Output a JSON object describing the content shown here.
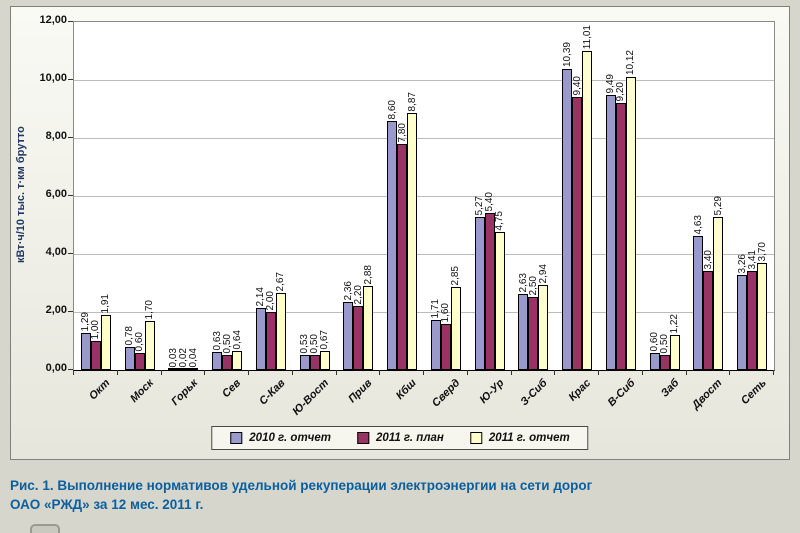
{
  "chart_data": {
    "type": "bar",
    "title": "",
    "xlabel": "",
    "ylabel": "кВт·ч/10 тыс. т·км брутто",
    "ylim": [
      0,
      12
    ],
    "ytick_step": 2,
    "yticks": [
      "0,00",
      "2,00",
      "4,00",
      "6,00",
      "8,00",
      "10,00",
      "12,00"
    ],
    "grid": true,
    "legend_position": "bottom",
    "categories": [
      "Окт",
      "Моск",
      "Горьк",
      "Сев",
      "С-Кав",
      "Ю-Вост",
      "Прив",
      "Кбш",
      "Сверд",
      "Ю-Ур",
      "З-Сиб",
      "Крас",
      "В-Сиб",
      "Заб",
      "Двост",
      "Сеть"
    ],
    "series": [
      {
        "name": "2010 г. отчет",
        "color": "#9999CC",
        "values": [
          "1,29",
          "0,78",
          "0,03",
          "0,63",
          "2,14",
          "0,53",
          "2,36",
          "8,60",
          "1,71",
          "5,27",
          "2,63",
          "10,39",
          "9,49",
          "0,60",
          "4,63",
          "3,26"
        ]
      },
      {
        "name": "2011 г. план",
        "color": "#993366",
        "values": [
          "1,00",
          "0,60",
          "0,02",
          "0,50",
          "2,00",
          "0,50",
          "2,20",
          "7,80",
          "1,60",
          "5,40",
          "2,50",
          "9,40",
          "9,20",
          "0,50",
          "3,40",
          "3,41"
        ]
      },
      {
        "name": "2011 г. отчет",
        "color": "#FFFFCC",
        "values": [
          "1,91",
          "1,70",
          "0,04",
          "0,64",
          "2,67",
          "0,67",
          "2,88",
          "8,87",
          "2,85",
          "4,75",
          "2,94",
          "11,01",
          "10,12",
          "1,22",
          "5,29",
          "3,70"
        ]
      }
    ]
  },
  "caption": "Рис. 1. Выполнение нормативов удельной рекуперации электроэнергии на сети дорог\nОАО «РЖД» за 12 мес. 2011 г.",
  "colors": {
    "caption_text": "#0a5f9e",
    "gridline": "#bcbcbc",
    "axis": "#000000",
    "page_background": "#d6d6cc"
  }
}
